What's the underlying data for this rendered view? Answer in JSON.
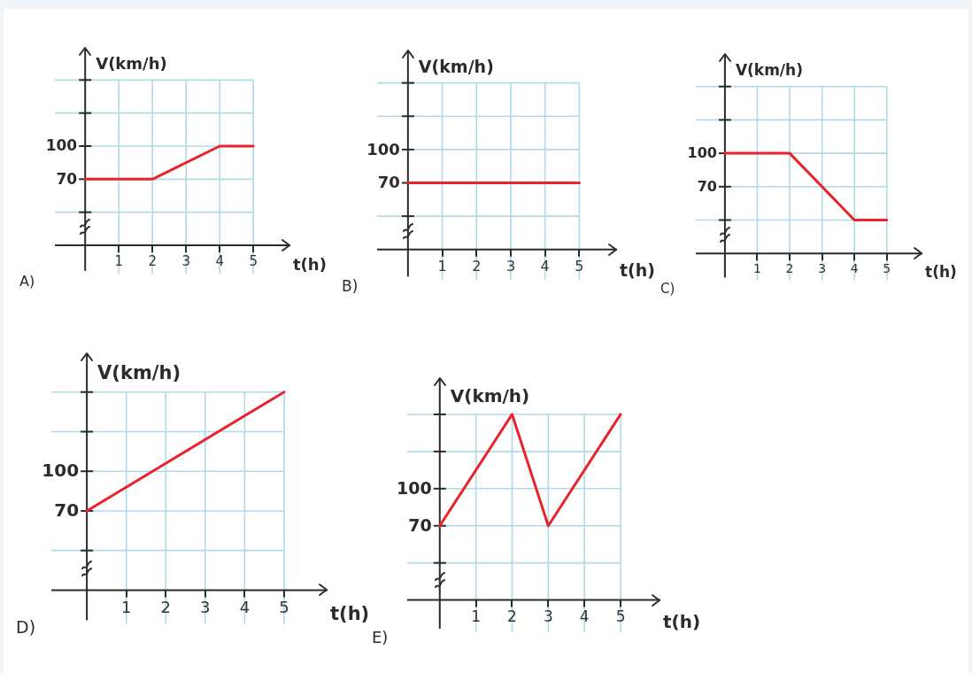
{
  "chart_data": [
    {
      "type": "line",
      "title": "A)",
      "xlabel": "t(h)",
      "ylabel": "V(km/h)",
      "x": [
        0,
        2,
        4,
        5
      ],
      "series": [
        {
          "color": "#e8232a",
          "values": [
            70,
            70,
            100,
            100
          ]
        }
      ],
      "xlim": [
        -0.9,
        6.1
      ],
      "ylim": [
        10,
        190
      ],
      "xticks": [
        1,
        2,
        3,
        4,
        5
      ],
      "yticks": [
        {
          "value": 40,
          "label": null
        },
        {
          "value": 70,
          "label": "70"
        },
        {
          "value": 100,
          "label": "100"
        },
        {
          "value": 130,
          "label": null
        },
        {
          "value": 160,
          "label": null
        }
      ],
      "grid": true,
      "marker": "none",
      "line_style": "solid"
    },
    {
      "type": "line",
      "title": "B)",
      "xlabel": "t(h)",
      "ylabel": "V(km/h)",
      "x": [
        0,
        5
      ],
      "series": [
        {
          "color": "#e8232a",
          "values": [
            70,
            70
          ]
        }
      ],
      "xlim": [
        -0.9,
        6.1
      ],
      "ylim": [
        10,
        190
      ],
      "xticks": [
        1,
        2,
        3,
        4,
        5
      ],
      "yticks": [
        {
          "value": 40,
          "label": null
        },
        {
          "value": 70,
          "label": "70"
        },
        {
          "value": 100,
          "label": "100"
        },
        {
          "value": 130,
          "label": null
        },
        {
          "value": 160,
          "label": null
        }
      ],
      "grid": true,
      "marker": "none",
      "line_style": "solid"
    },
    {
      "type": "line",
      "title": "C)",
      "xlabel": "t(h)",
      "ylabel": "V(km/h)",
      "x": [
        0,
        2,
        4,
        5
      ],
      "series": [
        {
          "color": "#e8232a",
          "values": [
            100,
            100,
            40,
            40
          ]
        }
      ],
      "xlim": [
        -0.9,
        6.1
      ],
      "ylim": [
        10,
        190
      ],
      "xticks": [
        1,
        2,
        3,
        4,
        5
      ],
      "yticks": [
        {
          "value": 40,
          "label": null
        },
        {
          "value": 70,
          "label": "70"
        },
        {
          "value": 100,
          "label": "100"
        },
        {
          "value": 130,
          "label": null
        },
        {
          "value": 160,
          "label": null
        }
      ],
      "grid": true,
      "marker": "none",
      "line_style": "solid"
    },
    {
      "type": "line",
      "title": "D)",
      "xlabel": "t(h)",
      "ylabel": "V(km/h)",
      "x": [
        0,
        5
      ],
      "series": [
        {
          "color": "#e8232a",
          "values": [
            70,
            160
          ]
        }
      ],
      "xlim": [
        -0.9,
        6.1
      ],
      "ylim": [
        10,
        190
      ],
      "xticks": [
        1,
        2,
        3,
        4,
        5
      ],
      "yticks": [
        {
          "value": 40,
          "label": null
        },
        {
          "value": 70,
          "label": "70"
        },
        {
          "value": 100,
          "label": "100"
        },
        {
          "value": 130,
          "label": null
        },
        {
          "value": 160,
          "label": null
        }
      ],
      "grid": true,
      "marker": "none",
      "line_style": "solid"
    },
    {
      "type": "line",
      "title": "E)",
      "xlabel": "t(h)",
      "ylabel": "V(km/h)",
      "x": [
        0,
        2,
        3,
        5
      ],
      "series": [
        {
          "color": "#e8232a",
          "values": [
            70,
            160,
            70,
            160
          ]
        }
      ],
      "xlim": [
        -0.9,
        6.1
      ],
      "ylim": [
        10,
        190
      ],
      "xticks": [
        1,
        2,
        3,
        4,
        5
      ],
      "yticks": [
        {
          "value": 40,
          "label": null
        },
        {
          "value": 70,
          "label": "70"
        },
        {
          "value": 100,
          "label": "100"
        },
        {
          "value": 130,
          "label": null
        },
        {
          "value": 160,
          "label": null
        }
      ],
      "grid": true,
      "marker": "none",
      "line_style": "solid"
    }
  ]
}
